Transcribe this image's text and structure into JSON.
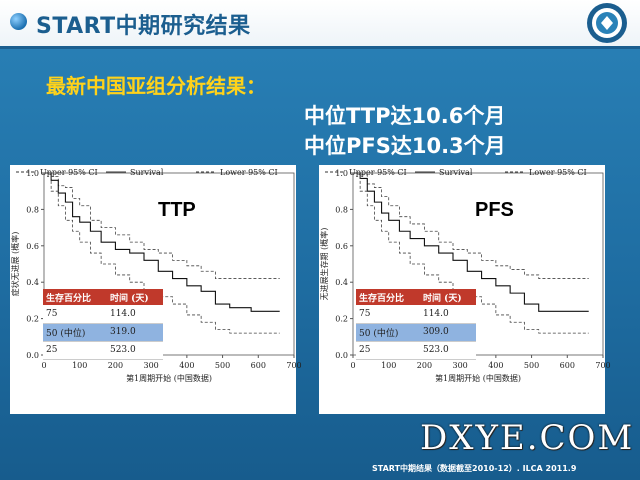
{
  "header": {
    "title": "START中期研究结果"
  },
  "subtitle": "最新中国亚组分析结果：",
  "results": [
    "中位TTP达10.6个月",
    "中位PFS达10.3个月"
  ],
  "life_table_header": [
    "生存百分比",
    "时间 (天)"
  ],
  "chart_data": [
    {
      "type": "line",
      "title": "TTP",
      "xlabel": "第1周期开始 (中国数据)",
      "ylabel": "症状无进展 (概率)",
      "xlim": [
        0,
        700
      ],
      "ylim": [
        0,
        1.0
      ],
      "xticks": [
        0,
        100,
        200,
        300,
        400,
        500,
        600,
        700
      ],
      "yticks": [
        0.0,
        0.2,
        0.4,
        0.6,
        0.8,
        1.0
      ],
      "yticklabels": [
        "0.0",
        "0.2",
        "0.4",
        "0.6",
        "0.8",
        "1.0"
      ],
      "series": [
        {
          "name": "Upper 95% CI",
          "style": "dashed",
          "points": [
            [
              0,
              1.0
            ],
            [
              20,
              0.98
            ],
            [
              40,
              0.93
            ],
            [
              60,
              0.92
            ],
            [
              80,
              0.86
            ],
            [
              100,
              0.82
            ],
            [
              130,
              0.74
            ],
            [
              160,
              0.7
            ],
            [
              200,
              0.66
            ],
            [
              240,
              0.62
            ],
            [
              280,
              0.58
            ],
            [
              320,
              0.56
            ],
            [
              360,
              0.52
            ],
            [
              400,
              0.49
            ],
            [
              440,
              0.46
            ],
            [
              480,
              0.42
            ],
            [
              520,
              0.42
            ],
            [
              560,
              0.42
            ],
            [
              660,
              0.42
            ]
          ]
        },
        {
          "name": "Survival",
          "style": "solid",
          "points": [
            [
              0,
              1.0
            ],
            [
              20,
              0.96
            ],
            [
              40,
              0.89
            ],
            [
              60,
              0.84
            ],
            [
              80,
              0.76
            ],
            [
              100,
              0.73
            ],
            [
              130,
              0.68
            ],
            [
              160,
              0.62
            ],
            [
              200,
              0.58
            ],
            [
              240,
              0.56
            ],
            [
              280,
              0.52
            ],
            [
              320,
              0.46
            ],
            [
              360,
              0.42
            ],
            [
              400,
              0.38
            ],
            [
              440,
              0.35
            ],
            [
              480,
              0.28
            ],
            [
              520,
              0.26
            ],
            [
              580,
              0.24
            ],
            [
              660,
              0.24
            ]
          ]
        },
        {
          "name": "Lower 95% CI",
          "style": "dashed",
          "points": [
            [
              0,
              1.0
            ],
            [
              20,
              0.9
            ],
            [
              40,
              0.82
            ],
            [
              60,
              0.74
            ],
            [
              80,
              0.68
            ],
            [
              100,
              0.62
            ],
            [
              130,
              0.56
            ],
            [
              160,
              0.5
            ],
            [
              200,
              0.44
            ],
            [
              240,
              0.4
            ],
            [
              280,
              0.36
            ],
            [
              320,
              0.32
            ],
            [
              360,
              0.28
            ],
            [
              400,
              0.22
            ],
            [
              440,
              0.18
            ],
            [
              480,
              0.14
            ],
            [
              520,
              0.12
            ],
            [
              580,
              0.12
            ],
            [
              660,
              0.12
            ]
          ]
        }
      ],
      "life_table": [
        {
          "pct": "75",
          "time": "114.0"
        },
        {
          "pct": "50 (中位)",
          "time": "319.0"
        },
        {
          "pct": "25",
          "time": "523.0"
        }
      ]
    },
    {
      "type": "line",
      "title": "PFS",
      "xlabel": "第1周期开始 (中国数据)",
      "ylabel": "无进展生存期 (概率)",
      "xlim": [
        0,
        700
      ],
      "ylim": [
        0,
        1.0
      ],
      "xticks": [
        0,
        100,
        200,
        300,
        400,
        500,
        600,
        700
      ],
      "yticks": [
        0.0,
        0.2,
        0.4,
        0.6,
        0.8,
        1.0
      ],
      "yticklabels": [
        "0.0",
        "0.2",
        "0.4",
        "0.6",
        "0.8",
        "1.0"
      ],
      "series": [
        {
          "name": "Upper 95% CI",
          "style": "dashed",
          "points": [
            [
              0,
              1.0
            ],
            [
              20,
              0.99
            ],
            [
              40,
              0.94
            ],
            [
              60,
              0.92
            ],
            [
              80,
              0.87
            ],
            [
              100,
              0.82
            ],
            [
              130,
              0.76
            ],
            [
              160,
              0.72
            ],
            [
              200,
              0.68
            ],
            [
              240,
              0.62
            ],
            [
              280,
              0.58
            ],
            [
              320,
              0.56
            ],
            [
              360,
              0.52
            ],
            [
              400,
              0.49
            ],
            [
              440,
              0.47
            ],
            [
              480,
              0.44
            ],
            [
              520,
              0.42
            ],
            [
              560,
              0.42
            ],
            [
              660,
              0.42
            ]
          ]
        },
        {
          "name": "Survival",
          "style": "solid",
          "points": [
            [
              0,
              1.0
            ],
            [
              20,
              0.97
            ],
            [
              40,
              0.9
            ],
            [
              60,
              0.84
            ],
            [
              80,
              0.78
            ],
            [
              100,
              0.74
            ],
            [
              130,
              0.68
            ],
            [
              160,
              0.64
            ],
            [
              200,
              0.6
            ],
            [
              240,
              0.56
            ],
            [
              280,
              0.52
            ],
            [
              320,
              0.46
            ],
            [
              360,
              0.42
            ],
            [
              400,
              0.38
            ],
            [
              440,
              0.34
            ],
            [
              480,
              0.28
            ],
            [
              520,
              0.24
            ],
            [
              580,
              0.24
            ],
            [
              660,
              0.24
            ]
          ]
        },
        {
          "name": "Lower 95% CI",
          "style": "dashed",
          "points": [
            [
              0,
              1.0
            ],
            [
              20,
              0.9
            ],
            [
              40,
              0.82
            ],
            [
              60,
              0.74
            ],
            [
              80,
              0.68
            ],
            [
              100,
              0.62
            ],
            [
              130,
              0.56
            ],
            [
              160,
              0.5
            ],
            [
              200,
              0.44
            ],
            [
              240,
              0.4
            ],
            [
              280,
              0.36
            ],
            [
              320,
              0.32
            ],
            [
              360,
              0.28
            ],
            [
              400,
              0.22
            ],
            [
              440,
              0.18
            ],
            [
              480,
              0.14
            ],
            [
              520,
              0.12
            ],
            [
              580,
              0.12
            ],
            [
              660,
              0.12
            ]
          ]
        }
      ],
      "life_table": [
        {
          "pct": "75",
          "time": "114.0"
        },
        {
          "pct": "50 (中位)",
          "time": "309.0"
        },
        {
          "pct": "25",
          "time": "523.0"
        }
      ]
    }
  ],
  "watermark": "DXYE.COM",
  "footer": "START中期结果（数据截至2010-12）. ILCA 2011.9",
  "colors": {
    "background": "#1f6ea3",
    "title": "#1b5e8f",
    "subtitle": "#ffd21a",
    "table_header": "#c0392b",
    "table_highlight": "#8fb3e0"
  }
}
